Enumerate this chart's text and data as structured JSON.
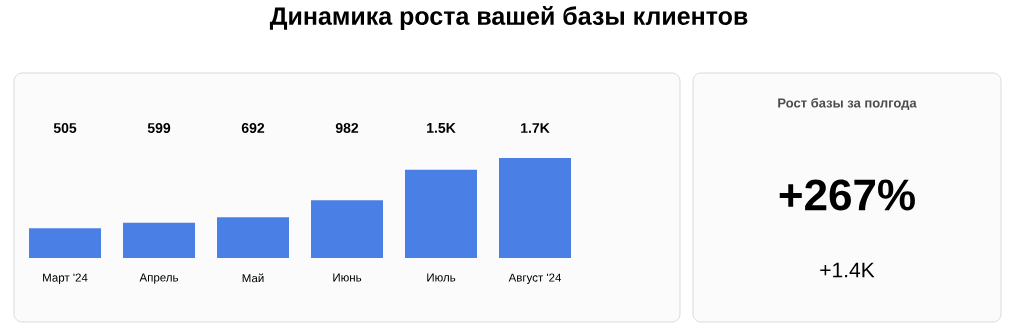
{
  "chart_data": [
    {
      "type": "bar",
      "title": "Динамика роста вашей базы клиентов",
      "categories": [
        "Март '24",
        "Апрель",
        "Май",
        "Июнь",
        "Июль",
        "Август '24"
      ],
      "values": [
        505,
        599,
        692,
        982,
        1500,
        1700
      ],
      "value_labels": [
        "505",
        "599",
        "692",
        "982",
        "1.5K",
        "1.7K"
      ],
      "color": "#4a7fe6"
    },
    {
      "type": "other",
      "title": "Рост базы за полгода",
      "annotations": [
        "+267%",
        "+1.4K"
      ]
    }
  ]
}
